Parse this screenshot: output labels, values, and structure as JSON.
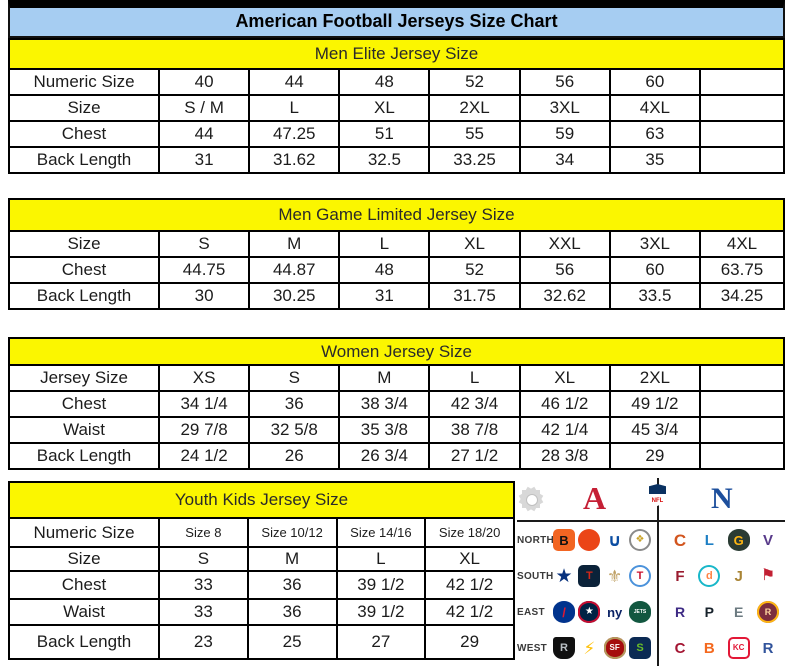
{
  "title": "American Football Jerseys Size Chart",
  "colors": {
    "title_bg": "#a6cdf2",
    "header_bg": "#fbf600",
    "border": "#000000",
    "text": "#1c1c1c"
  },
  "sections": {
    "men_elite": {
      "header": "Men Elite Jersey Size",
      "rows": [
        {
          "label": "Numeric Size",
          "cells": [
            "40",
            "44",
            "48",
            "52",
            "56",
            "60",
            ""
          ]
        },
        {
          "label": "Size",
          "cells": [
            "S / M",
            "L",
            "XL",
            "2XL",
            "3XL",
            "4XL",
            ""
          ]
        },
        {
          "label": "Chest",
          "cells": [
            "44",
            "47.25",
            "51",
            "55",
            "59",
            "63",
            ""
          ]
        },
        {
          "label": "Back Length",
          "cells": [
            "31",
            "31.62",
            "32.5",
            "33.25",
            "34",
            "35",
            ""
          ]
        }
      ]
    },
    "men_game": {
      "header": "Men Game Limited Jersey Size",
      "rows": [
        {
          "label": "Size",
          "cells": [
            "S",
            "M",
            "L",
            "XL",
            "XXL",
            "3XL",
            "4XL"
          ]
        },
        {
          "label": "Chest",
          "cells": [
            "44.75",
            "44.87",
            "48",
            "52",
            "56",
            "60",
            "63.75"
          ]
        },
        {
          "label": "Back Length",
          "cells": [
            "30",
            "30.25",
            "31",
            "31.75",
            "32.62",
            "33.5",
            "34.25"
          ]
        }
      ]
    },
    "women": {
      "header": "Women Jersey Size",
      "rows": [
        {
          "label": "Jersey Size",
          "cells": [
            "XS",
            "S",
            "M",
            "L",
            "XL",
            "2XL",
            ""
          ]
        },
        {
          "label": "Chest",
          "cells": [
            "34 1/4",
            "36",
            "38 3/4",
            "42 3/4",
            "46 1/2",
            "49 1/2",
            ""
          ]
        },
        {
          "label": "Waist",
          "cells": [
            "29 7/8",
            "32 5/8",
            "35 3/8",
            "38 7/8",
            "42 1/4",
            "45 3/4",
            ""
          ]
        },
        {
          "label": "Back Length",
          "cells": [
            "24 1/2",
            "26",
            "26 3/4",
            "27 1/2",
            "28 3/8",
            "29",
            ""
          ]
        }
      ]
    },
    "youth": {
      "header": "Youth Kids Jersey Size",
      "rows": [
        {
          "label": "Numeric Size",
          "cells": [
            "Size 8",
            "Size 10/12",
            "Size 14/16",
            "Size 18/20"
          ]
        },
        {
          "label": "Size",
          "cells": [
            "S",
            "M",
            "L",
            "XL"
          ]
        },
        {
          "label": "Chest",
          "cells": [
            "33",
            "36",
            "39 1/2",
            "42 1/2"
          ]
        },
        {
          "label": "Waist",
          "cells": [
            "33",
            "36",
            "39 1/2",
            "42 1/2"
          ]
        },
        {
          "label": "Back Length",
          "cells": [
            "23",
            "25",
            "27",
            "29"
          ]
        }
      ]
    }
  },
  "logo_panel": {
    "afc_letter": "A",
    "nfc_letter": "N",
    "nfl_text": "NFL",
    "afc_color": "#c51f35",
    "nfc_color": "#1d4f9c",
    "divisions": [
      {
        "label": "NORTH",
        "afc": [
          {
            "team": "bengals",
            "shape": "rounded",
            "bg": "#f26522",
            "fg": "#111111",
            "glyph": "B",
            "fs": 13
          },
          {
            "team": "browns",
            "shape": "round",
            "bg": "#eb4517",
            "fg": "#5e2b10",
            "glyph": "",
            "fs": 10
          },
          {
            "team": "colts",
            "shape": "text",
            "fg": "#0b4da2",
            "glyph": "∪",
            "fs": 17
          },
          {
            "team": "steelers",
            "shape": "round",
            "bg": "#ffffff",
            "border": "#8a8a8a",
            "fg": "#c9a227",
            "glyph": "❖",
            "fs": 10
          }
        ],
        "nfc": [
          {
            "team": "bears",
            "shape": "text",
            "fg": "#d2551e",
            "glyph": "C",
            "fs": 17
          },
          {
            "team": "lions",
            "shape": "text",
            "fg": "#1d7fc4",
            "glyph": "L",
            "fs": 15
          },
          {
            "team": "packers",
            "shape": "oval",
            "bg": "#2a3b33",
            "fg": "#ffb612",
            "glyph": "G",
            "fs": 13
          },
          {
            "team": "vikings",
            "shape": "text",
            "fg": "#583a8a",
            "glyph": "V",
            "fs": 15
          }
        ]
      },
      {
        "label": "SOUTH",
        "afc": [
          {
            "team": "cowboys",
            "shape": "text",
            "fg": "#08327e",
            "glyph": "★",
            "fs": 19
          },
          {
            "team": "texans",
            "shape": "rounded",
            "bg": "#0b2239",
            "fg": "#d62718",
            "glyph": "T",
            "fs": 11
          },
          {
            "team": "saints",
            "shape": "text",
            "fg": "#bfa064",
            "glyph": "⚜",
            "fs": 17
          },
          {
            "team": "titans",
            "shape": "round",
            "bg": "#ffffff",
            "border": "#4b92db",
            "fg": "#c8102e",
            "glyph": "T",
            "fs": 11
          }
        ],
        "nfc": [
          {
            "team": "falcons",
            "shape": "text",
            "fg": "#9a1b2f",
            "glyph": "F",
            "fs": 15
          },
          {
            "team": "dolphins",
            "shape": "round",
            "bg": "#ffffff",
            "border": "#18b7c9",
            "fg": "#ff8243",
            "glyph": "d",
            "fs": 11
          },
          {
            "team": "jaguars",
            "shape": "text",
            "fg": "#a98435",
            "glyph": "J",
            "fs": 15
          },
          {
            "team": "buccaneers",
            "shape": "text",
            "fg": "#c22033",
            "glyph": "⚑",
            "fs": 16
          }
        ]
      },
      {
        "label": "EAST",
        "afc": [
          {
            "team": "bills",
            "shape": "oval",
            "bg": "#00338d",
            "fg": "#e01933",
            "glyph": "/",
            "fs": 13
          },
          {
            "team": "patriots",
            "shape": "oval",
            "bg": "#002244",
            "border": "#c60c30",
            "fg": "#ffffff",
            "glyph": "★",
            "fs": 10
          },
          {
            "team": "giants",
            "shape": "text",
            "fg": "#0b2265",
            "glyph": "ny",
            "fs": 13
          },
          {
            "team": "jets",
            "shape": "oval",
            "bg": "#125740",
            "fg": "#ffffff",
            "glyph": "JETS",
            "fs": 5
          }
        ],
        "nfc": [
          {
            "team": "ravens",
            "shape": "text",
            "fg": "#3d2a84",
            "glyph": "R",
            "fs": 14
          },
          {
            "team": "panthers",
            "shape": "text",
            "fg": "#17222b",
            "glyph": "P",
            "fs": 14
          },
          {
            "team": "eagles",
            "shape": "text",
            "fg": "#6b7a80",
            "glyph": "E",
            "fs": 14
          },
          {
            "team": "redskins",
            "shape": "round",
            "bg": "#7c2e3e",
            "border": "#ffb612",
            "fg": "#ffd9a0",
            "glyph": "R",
            "fs": 9
          }
        ]
      },
      {
        "label": "WEST",
        "afc": [
          {
            "team": "raiders",
            "shape": "shield",
            "bg": "#101010",
            "fg": "#b9bfc3",
            "glyph": "R",
            "fs": 11
          },
          {
            "team": "chargers",
            "shape": "text",
            "fg": "#ffc20e",
            "glyph": "⚡",
            "fs": 17
          },
          {
            "team": "49ers",
            "shape": "oval",
            "bg": "#a50d0d",
            "border": "#b3995d",
            "fg": "#ffffff",
            "glyph": "SF",
            "fs": 8
          },
          {
            "team": "seahawks",
            "shape": "rounded",
            "bg": "#0b2a53",
            "fg": "#69be28",
            "glyph": "S",
            "fs": 11
          }
        ],
        "nfc": [
          {
            "team": "cardinals",
            "shape": "text",
            "fg": "#a41633",
            "glyph": "C",
            "fs": 15
          },
          {
            "team": "broncos",
            "shape": "text",
            "fg": "#f4691f",
            "glyph": "B",
            "fs": 15
          },
          {
            "team": "chiefs",
            "shape": "rounded",
            "bg": "#ffffff",
            "border": "#e31837",
            "fg": "#e31837",
            "glyph": "KC",
            "fs": 8
          },
          {
            "team": "rams",
            "shape": "text",
            "fg": "#31539b",
            "glyph": "R",
            "fs": 15
          }
        ]
      }
    ]
  }
}
